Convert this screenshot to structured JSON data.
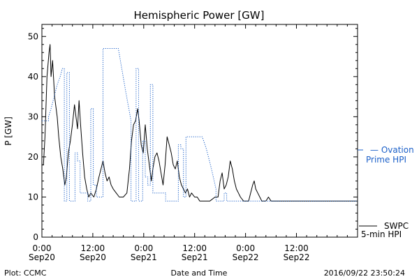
{
  "chart_data": {
    "type": "line",
    "title": "Hemispheric Power [GW]",
    "xlabel": "Date and Time",
    "ylabel": "P [GW]",
    "xlim": [
      0,
      62
    ],
    "ylim": [
      0,
      53
    ],
    "x_unit": "hours from 2016-09-20 00:00",
    "yticks": [
      0,
      10,
      20,
      30,
      40,
      50
    ],
    "xticks": [
      {
        "x": 0,
        "line1": "0:00",
        "line2": "Sep20"
      },
      {
        "x": 10,
        "line1": "12:00",
        "line2": "Sep20"
      },
      {
        "x": 20,
        "line1": "0:00",
        "line2": "Sep21"
      },
      {
        "x": 30,
        "line1": "12:00",
        "line2": "Sep21"
      },
      {
        "x": 40,
        "line1": "0:00",
        "line2": "Sep22"
      },
      {
        "x": 50,
        "line1": "12:00",
        "line2": "Sep22"
      }
    ],
    "grid": false,
    "series": [
      {
        "name": "SWPC 5-min HPI",
        "color": "#000000",
        "style": "solid",
        "points": [
          [
            0,
            18
          ],
          [
            0.3,
            18
          ],
          [
            0.6,
            25
          ],
          [
            1.0,
            40
          ],
          [
            1.4,
            46
          ],
          [
            1.6,
            48
          ],
          [
            1.8,
            40
          ],
          [
            2.1,
            44
          ],
          [
            2.5,
            35
          ],
          [
            3.0,
            30
          ],
          [
            3.3,
            25
          ],
          [
            3.7,
            20
          ],
          [
            4.1,
            17
          ],
          [
            4.5,
            13
          ],
          [
            4.8,
            15
          ],
          [
            5.2,
            21
          ],
          [
            5.6,
            24
          ],
          [
            6.0,
            28
          ],
          [
            6.4,
            33
          ],
          [
            6.7,
            30
          ],
          [
            7.0,
            27
          ],
          [
            7.3,
            34
          ],
          [
            7.6,
            28
          ],
          [
            8.0,
            21
          ],
          [
            8.4,
            15
          ],
          [
            8.8,
            12
          ],
          [
            9.2,
            10
          ],
          [
            9.6,
            11
          ],
          [
            10.2,
            10
          ],
          [
            10.7,
            12
          ],
          [
            11.2,
            15
          ],
          [
            11.6,
            17
          ],
          [
            12.0,
            19
          ],
          [
            12.4,
            16
          ],
          [
            12.8,
            14
          ],
          [
            13.2,
            15
          ],
          [
            13.6,
            13
          ],
          [
            14.0,
            12
          ],
          [
            14.6,
            11
          ],
          [
            15.2,
            10
          ],
          [
            16.0,
            10
          ],
          [
            16.7,
            11
          ],
          [
            17.2,
            17
          ],
          [
            17.6,
            24
          ],
          [
            18.0,
            28
          ],
          [
            18.4,
            29
          ],
          [
            18.8,
            32
          ],
          [
            19.1,
            29
          ],
          [
            19.5,
            23
          ],
          [
            19.9,
            21
          ],
          [
            20.3,
            28
          ],
          [
            20.7,
            22
          ],
          [
            21.1,
            18
          ],
          [
            21.5,
            14
          ],
          [
            21.8,
            17
          ],
          [
            22.2,
            20
          ],
          [
            22.6,
            21
          ],
          [
            23.0,
            19
          ],
          [
            23.4,
            16
          ],
          [
            23.8,
            13
          ],
          [
            24.2,
            18
          ],
          [
            24.6,
            25
          ],
          [
            25.0,
            23
          ],
          [
            25.4,
            21
          ],
          [
            25.8,
            18
          ],
          [
            26.2,
            17
          ],
          [
            26.6,
            19
          ],
          [
            27.0,
            15
          ],
          [
            27.4,
            13
          ],
          [
            27.8,
            12
          ],
          [
            28.2,
            11
          ],
          [
            28.6,
            12
          ],
          [
            29.0,
            10
          ],
          [
            29.4,
            11
          ],
          [
            30.0,
            10
          ],
          [
            30.5,
            10
          ],
          [
            31.0,
            9
          ],
          [
            33.0,
            9
          ],
          [
            34.0,
            10
          ],
          [
            34.6,
            10
          ],
          [
            35.0,
            14
          ],
          [
            35.4,
            16
          ],
          [
            35.8,
            12
          ],
          [
            36.2,
            13
          ],
          [
            36.6,
            15
          ],
          [
            37.0,
            19
          ],
          [
            37.4,
            17
          ],
          [
            37.8,
            14
          ],
          [
            38.2,
            12
          ],
          [
            38.6,
            11
          ],
          [
            39.0,
            10
          ],
          [
            39.6,
            9
          ],
          [
            40.6,
            9
          ],
          [
            41.0,
            11
          ],
          [
            41.4,
            13
          ],
          [
            41.7,
            14
          ],
          [
            42.0,
            12
          ],
          [
            42.4,
            11
          ],
          [
            42.8,
            10
          ],
          [
            43.2,
            9
          ],
          [
            44.0,
            9
          ],
          [
            44.5,
            10
          ],
          [
            45.0,
            9
          ],
          [
            62.0,
            9
          ]
        ]
      },
      {
        "name": "Ovation Prime HPI",
        "color": "#1a5fc8",
        "style": "dotted",
        "points": [
          [
            0,
            29
          ],
          [
            1.3,
            29
          ],
          [
            1.3,
            30
          ],
          [
            1.8,
            32
          ],
          [
            2.4,
            35
          ],
          [
            3.0,
            38
          ],
          [
            3.6,
            40
          ],
          [
            4.0,
            42
          ],
          [
            4.4,
            42
          ],
          [
            4.4,
            9
          ],
          [
            4.9,
            9
          ],
          [
            4.9,
            41
          ],
          [
            5.4,
            41
          ],
          [
            5.4,
            9
          ],
          [
            6.5,
            9
          ],
          [
            6.5,
            21
          ],
          [
            7.0,
            21
          ],
          [
            7.0,
            19
          ],
          [
            7.5,
            19
          ],
          [
            7.5,
            11
          ],
          [
            9.0,
            11
          ],
          [
            9.0,
            9
          ],
          [
            9.6,
            9
          ],
          [
            9.6,
            32
          ],
          [
            10.1,
            32
          ],
          [
            10.1,
            13
          ],
          [
            10.7,
            13
          ],
          [
            10.7,
            10
          ],
          [
            12.0,
            10
          ],
          [
            12.0,
            47
          ],
          [
            15.0,
            47
          ],
          [
            16.5,
            36
          ],
          [
            17.5,
            29
          ],
          [
            17.5,
            9
          ],
          [
            18.5,
            9
          ],
          [
            18.5,
            42
          ],
          [
            19.0,
            42
          ],
          [
            19.0,
            9
          ],
          [
            19.8,
            9
          ],
          [
            19.8,
            24
          ],
          [
            20.3,
            24
          ],
          [
            20.3,
            15
          ],
          [
            20.8,
            15
          ],
          [
            20.8,
            13
          ],
          [
            21.3,
            13
          ],
          [
            21.3,
            38
          ],
          [
            21.8,
            38
          ],
          [
            21.8,
            11
          ],
          [
            24.3,
            11
          ],
          [
            24.3,
            9
          ],
          [
            26.8,
            9
          ],
          [
            26.8,
            23
          ],
          [
            27.3,
            23
          ],
          [
            27.3,
            22
          ],
          [
            27.8,
            22
          ],
          [
            27.8,
            10
          ],
          [
            28.3,
            10
          ],
          [
            28.3,
            25
          ],
          [
            31.5,
            25
          ],
          [
            32.3,
            22
          ],
          [
            33.3,
            17
          ],
          [
            34.2,
            12
          ],
          [
            34.2,
            9
          ],
          [
            35.8,
            9
          ],
          [
            35.8,
            11
          ],
          [
            36.3,
            11
          ],
          [
            36.3,
            9
          ],
          [
            62.0,
            9
          ]
        ]
      }
    ]
  },
  "labels": {
    "legend_ovation_line1": "— Ovation",
    "legend_ovation_line2": "Prime HPI",
    "legend_swpc_line1": "SWPC",
    "legend_swpc_line2": "5-min HPI",
    "footer_left": "Plot: CCMC",
    "footer_right": "2016/09/22 23:50:24"
  }
}
